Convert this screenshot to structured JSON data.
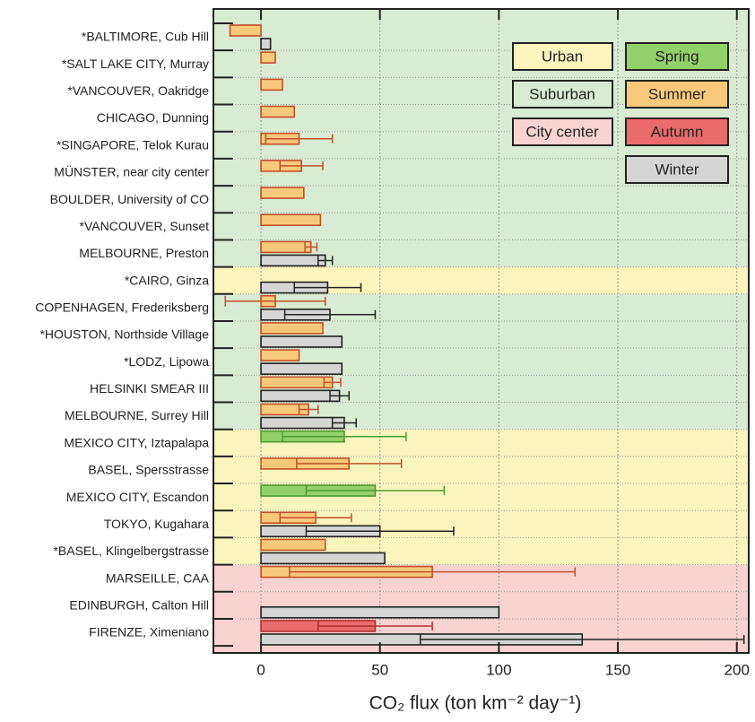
{
  "chart_data": {
    "type": "bar",
    "xlabel": "CO₂ flux (ton km⁻² day⁻¹)",
    "categories": [
      "*BALTIMORE, Cub Hill",
      "*SALT LAKE CITY, Murray",
      "*VANCOUVER, Oakridge",
      "CHICAGO, Dunning",
      "*SINGAPORE, Telok Kurau",
      "MÜNSTER, near city center",
      "BOULDER, University of CO",
      "*VANCOUVER, Sunset",
      "MELBOURNE, Preston",
      "*CAIRO, Ginza",
      "COPENHAGEN, Frederiksberg",
      "*HOUSTON, Northside Village",
      "*LODZ, Lipowa",
      "HELSINKI SMEAR III",
      "MELBOURNE, Surrey Hill",
      "MEXICO CITY, Iztapalapa",
      "BASEL, Spersstrasse",
      "MEXICO CITY, Escandon",
      "TOKYO, Kugahara",
      "*BASEL, Klingelbergstrasse",
      "MARSEILLE, CAA",
      "EDINBURGH, Calton Hill",
      "FIRENZE, Ximeniano"
    ],
    "category_zones": [
      "Suburban",
      "Suburban",
      "Suburban",
      "Suburban",
      "Suburban",
      "Suburban",
      "Suburban",
      "Suburban",
      "Suburban",
      "Urban",
      "Suburban",
      "Suburban",
      "Suburban",
      "Suburban",
      "Suburban",
      "Urban",
      "Urban",
      "Urban",
      "Urban",
      "Urban",
      "City center",
      "City center",
      "City center"
    ],
    "zones": [
      {
        "name": "Urban",
        "color": "#faf4bd"
      },
      {
        "name": "Suburban",
        "color": "#d9ebd2"
      },
      {
        "name": "City center",
        "color": "#f8d3d1"
      }
    ],
    "series": [
      {
        "name": "Spring",
        "color": "#92d06a",
        "stroke": "#4f9a32",
        "values": [
          null,
          null,
          null,
          null,
          null,
          null,
          null,
          null,
          null,
          null,
          null,
          null,
          null,
          null,
          null,
          35,
          null,
          48,
          null,
          null,
          null,
          null,
          null
        ],
        "errors": [
          null,
          null,
          null,
          null,
          null,
          null,
          null,
          null,
          null,
          null,
          null,
          null,
          null,
          null,
          null,
          26,
          null,
          29,
          null,
          null,
          null,
          null,
          null
        ]
      },
      {
        "name": "Summer",
        "color": "#f9c97b",
        "stroke": "#c0502a",
        "values": [
          -13,
          6,
          9,
          14,
          16,
          17,
          18,
          25,
          21,
          null,
          6,
          26,
          16,
          30,
          20,
          null,
          37,
          null,
          23,
          27,
          72,
          null,
          null
        ],
        "errors": [
          null,
          null,
          null,
          null,
          14,
          9,
          null,
          null,
          2.5,
          null,
          21,
          null,
          null,
          3.5,
          4,
          null,
          22,
          null,
          15,
          null,
          60,
          null,
          null
        ]
      },
      {
        "name": "Autumn",
        "color": "#e96b6b",
        "stroke": "#b02f2f",
        "values": [
          null,
          null,
          null,
          null,
          null,
          null,
          null,
          null,
          null,
          null,
          null,
          null,
          null,
          null,
          null,
          null,
          null,
          null,
          null,
          null,
          null,
          null,
          48
        ],
        "errors": [
          null,
          null,
          null,
          null,
          null,
          null,
          null,
          null,
          null,
          null,
          null,
          null,
          null,
          null,
          null,
          null,
          null,
          null,
          null,
          null,
          null,
          null,
          24
        ]
      },
      {
        "name": "Winter",
        "color": "#d5d5d5",
        "stroke": "#222222",
        "values": [
          4,
          null,
          null,
          null,
          null,
          null,
          null,
          null,
          27,
          28,
          29,
          34,
          34,
          33,
          35,
          null,
          null,
          null,
          50,
          52,
          null,
          100,
          135
        ],
        "errors": [
          null,
          null,
          null,
          null,
          null,
          null,
          null,
          null,
          3,
          14,
          19,
          null,
          null,
          4,
          5,
          null,
          null,
          null,
          31,
          null,
          null,
          null,
          68
        ]
      }
    ],
    "xlim": [
      -20,
      205
    ],
    "xticks": [
      0,
      50,
      100,
      150,
      200
    ],
    "grid": true,
    "legend": "upper right"
  }
}
